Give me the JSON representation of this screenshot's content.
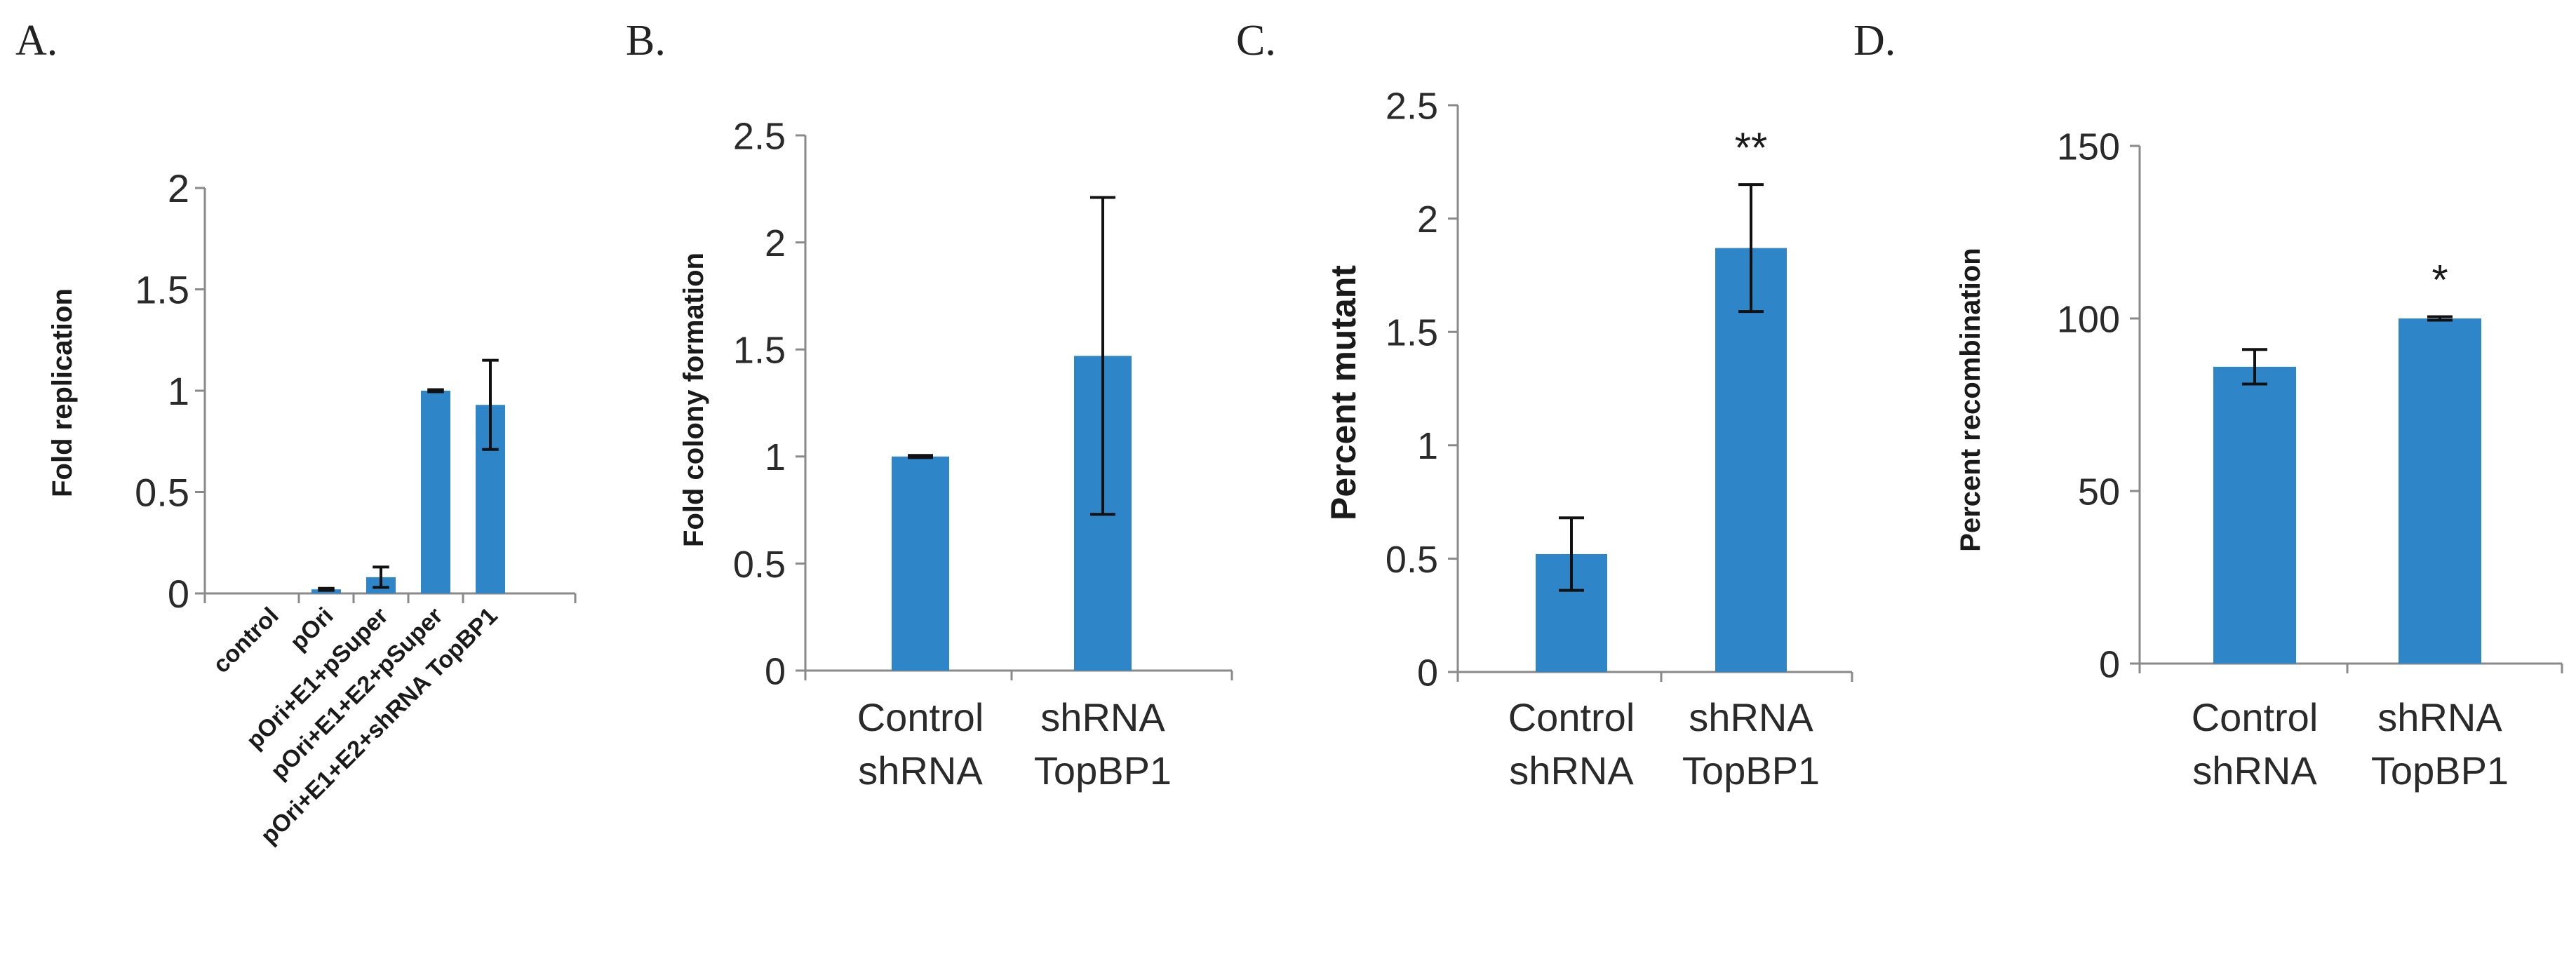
{
  "chart_data": [
    {
      "panel": "A.",
      "type": "bar",
      "ylabel": "Fold replication",
      "ylim": [
        0,
        2
      ],
      "yticks": [
        "0",
        "0.5",
        "1",
        "1.5",
        "2"
      ],
      "categories": [
        "control",
        "pOri",
        "pOri+E1+pSuper",
        "pOri+E1+E2+pSuper",
        "pOri+E1+E2+shRNA TopBP1"
      ],
      "values": [
        0,
        0.02,
        0.08,
        1.0,
        0.93
      ],
      "errors": [
        0,
        0.005,
        0.05,
        0.005,
        0.22
      ],
      "significance": [
        "",
        "",
        "",
        "",
        ""
      ],
      "color": "#2E86C9"
    },
    {
      "panel": "B.",
      "type": "bar",
      "ylabel": "Fold colony formation",
      "ylim": [
        0,
        2.5
      ],
      "yticks": [
        "0",
        "0.5",
        "1",
        "1.5",
        "2",
        "2.5"
      ],
      "categories": [
        [
          "Control",
          "shRNA"
        ],
        [
          "shRNA",
          "TopBP1"
        ]
      ],
      "values": [
        1.0,
        1.47
      ],
      "errors": [
        0.005,
        0.74
      ],
      "significance": [
        "",
        ""
      ],
      "color": "#2E86C9"
    },
    {
      "panel": "C.",
      "type": "bar",
      "ylabel": "Percent mutant",
      "ylim": [
        0,
        2.5
      ],
      "yticks": [
        "0",
        "0.5",
        "1",
        "1.5",
        "2",
        "2.5"
      ],
      "categories": [
        [
          "Control",
          "shRNA"
        ],
        [
          "shRNA",
          "TopBP1"
        ]
      ],
      "values": [
        0.52,
        1.87
      ],
      "errors": [
        0.16,
        0.28
      ],
      "significance": [
        "",
        "**"
      ],
      "color": "#2E86C9"
    },
    {
      "panel": "D.",
      "type": "bar",
      "ylabel": "Percent recombination",
      "ylim": [
        0,
        150
      ],
      "yticks": [
        "0",
        "50",
        "100",
        "150"
      ],
      "categories": [
        [
          "Control",
          "shRNA"
        ],
        [
          "shRNA",
          "TopBP1"
        ]
      ],
      "values": [
        86,
        100
      ],
      "errors": [
        5,
        0.5
      ],
      "significance": [
        "",
        "*"
      ],
      "color": "#2E86C9"
    }
  ]
}
